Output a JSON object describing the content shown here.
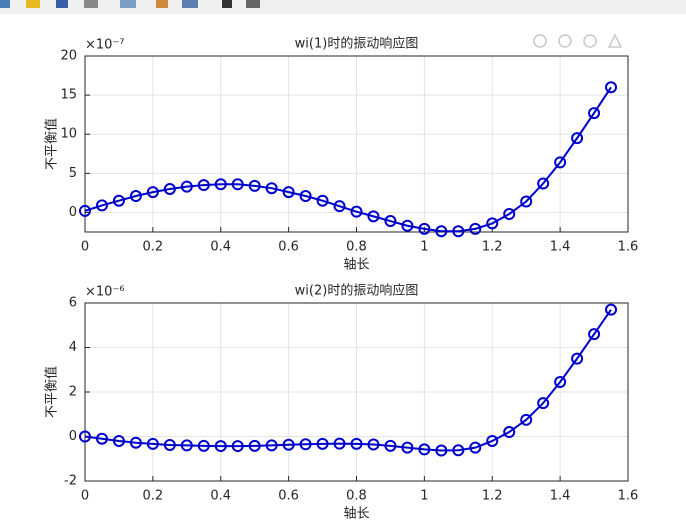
{
  "chart_data": [
    {
      "type": "line",
      "title": "wi(1)时的振动响应图",
      "x_label": "轴长",
      "y_label": "不平衡值",
      "exponent_label": "×10⁻⁷",
      "x": [
        0,
        0.05,
        0.1,
        0.15,
        0.2,
        0.25,
        0.3,
        0.35,
        0.4,
        0.45,
        0.5,
        0.55,
        0.6,
        0.65,
        0.7,
        0.75,
        0.8,
        0.85,
        0.9,
        0.95,
        1.0,
        1.05,
        1.1,
        1.15,
        1.2,
        1.25,
        1.3,
        1.35,
        1.4,
        1.45,
        1.5,
        1.55
      ],
      "series": [
        {
          "color": "#0000cd",
          "values": [
            0.2,
            0.9,
            1.5,
            2.1,
            2.6,
            3.0,
            3.3,
            3.5,
            3.6,
            3.6,
            3.4,
            3.1,
            2.6,
            2.1,
            1.5,
            0.8,
            0.1,
            -0.5,
            -1.1,
            -1.7,
            -2.1,
            -2.4,
            -2.4,
            -2.1,
            -1.4,
            -0.2,
            1.4,
            3.7,
            6.4,
            9.5,
            12.7,
            16.0
          ]
        }
      ],
      "xlim": [
        0,
        1.6
      ],
      "xticks": [
        0,
        0.2,
        0.4,
        0.6,
        0.8,
        1,
        1.2,
        1.4,
        1.6
      ],
      "ylim": [
        -2.5,
        20
      ],
      "yticks": [
        0,
        5,
        10,
        15,
        20
      ],
      "grid": true
    },
    {
      "type": "line",
      "title": "wi(2)时的振动响应图",
      "x_label": "轴长",
      "y_label": "不平衡值",
      "exponent_label": "×10⁻⁶",
      "x": [
        0,
        0.05,
        0.1,
        0.15,
        0.2,
        0.25,
        0.3,
        0.35,
        0.4,
        0.45,
        0.5,
        0.55,
        0.6,
        0.65,
        0.7,
        0.75,
        0.8,
        0.85,
        0.9,
        0.95,
        1.0,
        1.05,
        1.1,
        1.15,
        1.2,
        1.25,
        1.3,
        1.35,
        1.4,
        1.45,
        1.5,
        1.55
      ],
      "series": [
        {
          "color": "#0000cd",
          "values": [
            0,
            -0.1,
            -0.2,
            -0.28,
            -0.33,
            -0.38,
            -0.4,
            -0.42,
            -0.43,
            -0.43,
            -0.42,
            -0.4,
            -0.37,
            -0.35,
            -0.33,
            -0.32,
            -0.33,
            -0.36,
            -0.42,
            -0.5,
            -0.58,
            -0.63,
            -0.62,
            -0.5,
            -0.2,
            0.2,
            0.75,
            1.5,
            2.45,
            3.5,
            4.6,
            5.7
          ]
        }
      ],
      "xlim": [
        0,
        1.6
      ],
      "xticks": [
        0,
        0.2,
        0.4,
        0.6,
        0.8,
        1,
        1.2,
        1.4,
        1.6
      ],
      "ylim": [
        -2,
        6
      ],
      "yticks": [
        -2,
        0,
        2,
        4,
        6
      ],
      "grid": true
    }
  ]
}
